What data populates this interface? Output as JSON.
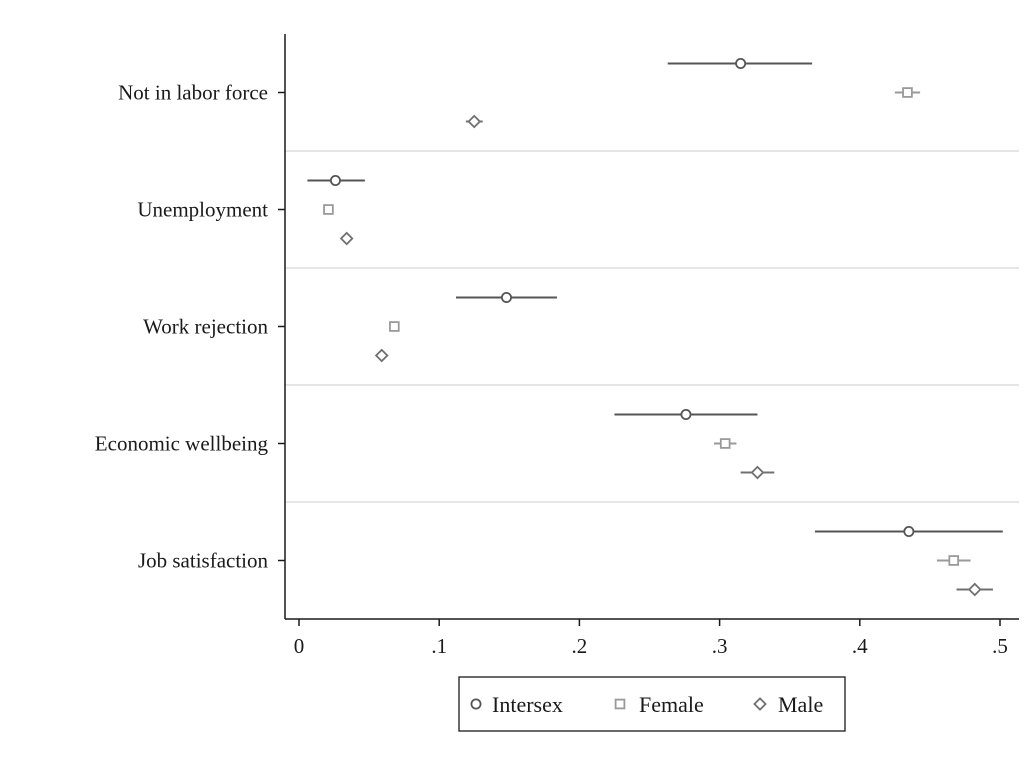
{
  "chart_data": {
    "type": "scatter",
    "title": "",
    "xlabel": "",
    "ylabel": "",
    "xlim": [
      -0.01,
      0.51
    ],
    "x_ticks": [
      0,
      0.1,
      0.2,
      0.3,
      0.4,
      0.5
    ],
    "x_tick_labels": [
      "0",
      ".1",
      ".2",
      ".3",
      ".4",
      ".5"
    ],
    "grid": "horizontal separators between categories",
    "legend_position": "bottom",
    "categories": [
      "Not in labor force",
      "Unemployment",
      "Work rejection",
      "Economic wellbeing",
      "Job satisfaction"
    ],
    "series": [
      {
        "name": "Intersex",
        "marker": "circle",
        "color": "#555555",
        "estimates": [
          0.315,
          0.026,
          0.148,
          0.276,
          0.435
        ],
        "ci_low": [
          0.263,
          0.006,
          0.112,
          0.225,
          0.368
        ],
        "ci_high": [
          0.366,
          0.047,
          0.184,
          0.327,
          0.502
        ]
      },
      {
        "name": "Female",
        "marker": "square",
        "color": "#9a9a9a",
        "estimates": [
          0.434,
          0.021,
          0.068,
          0.304,
          0.467
        ],
        "ci_low": [
          0.425,
          0.019,
          0.065,
          0.296,
          0.455
        ],
        "ci_high": [
          0.443,
          0.023,
          0.071,
          0.312,
          0.479
        ]
      },
      {
        "name": "Male",
        "marker": "diamond",
        "color": "#707070",
        "estimates": [
          0.125,
          0.034,
          0.059,
          0.327,
          0.482
        ],
        "ci_low": [
          0.119,
          0.031,
          0.056,
          0.315,
          0.469
        ],
        "ci_high": [
          0.131,
          0.037,
          0.062,
          0.339,
          0.495
        ]
      }
    ]
  },
  "colors": {
    "axis": "#1a1a1a",
    "separator": "#e6e6e6",
    "intersex": "#555555",
    "female": "#9a9a9a",
    "male": "#707070"
  }
}
